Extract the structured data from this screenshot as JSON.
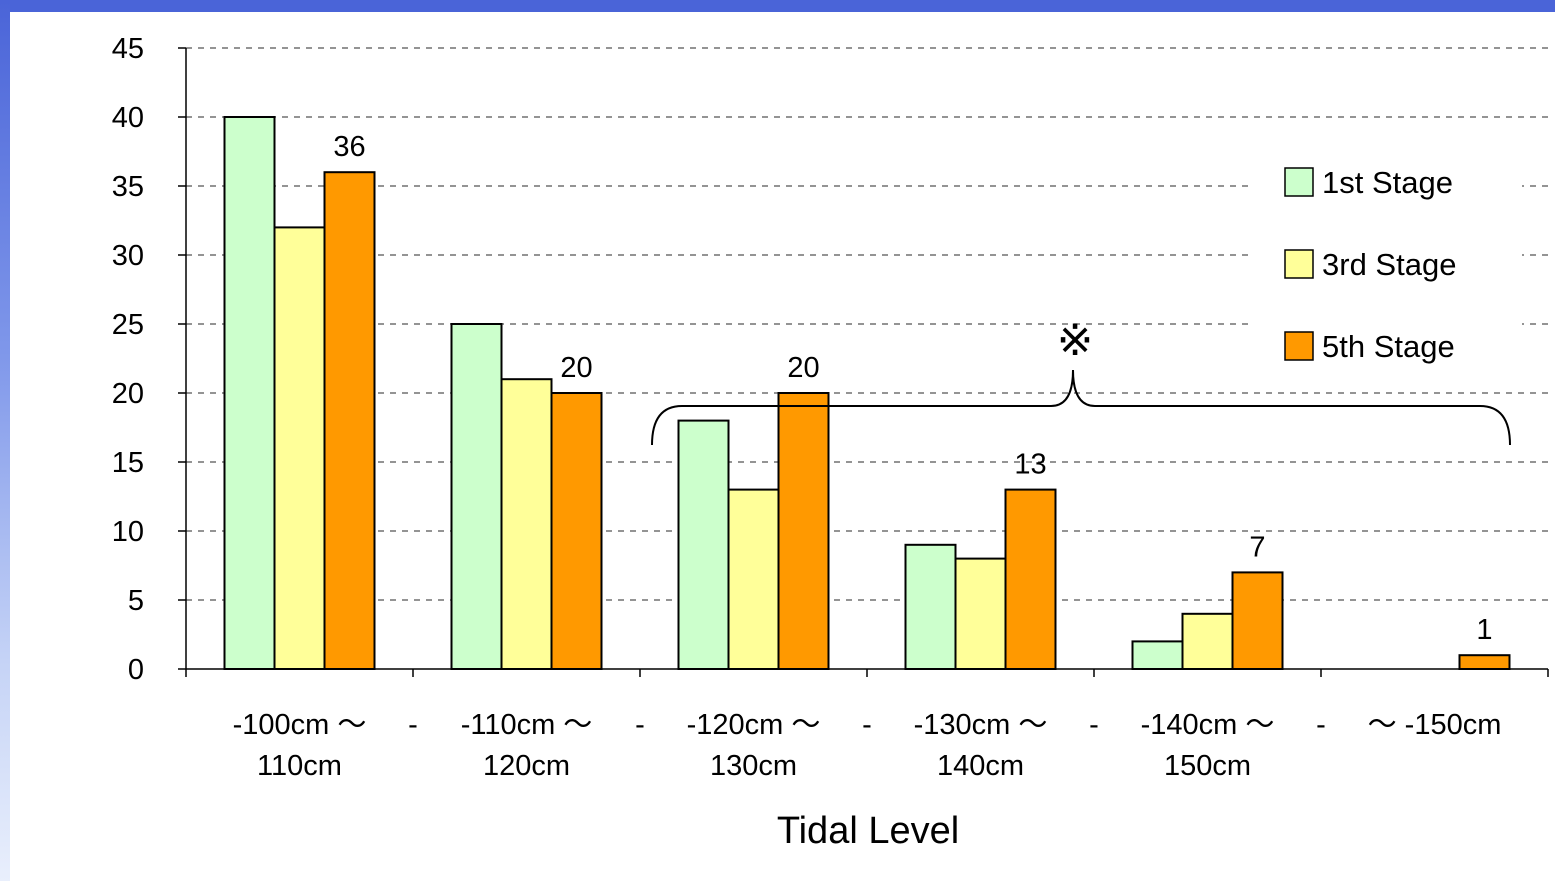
{
  "chart_data": {
    "type": "bar",
    "title": "",
    "xlabel": "Tidal Level",
    "ylabel": "",
    "ylim": [
      0,
      45
    ],
    "yticks": [
      0,
      5,
      10,
      15,
      20,
      25,
      30,
      35,
      40,
      45
    ],
    "grid": true,
    "legend_position": "right",
    "categories": [
      [
        "-100cm ～",
        "110cm"
      ],
      [
        "-110cm ～",
        "120cm"
      ],
      [
        "-120cm ～",
        "130cm"
      ],
      [
        "-130cm ～",
        "140cm"
      ],
      [
        "-140cm ～",
        "150cm"
      ],
      [
        "～ -150cm"
      ]
    ],
    "category_separator": "-",
    "series": [
      {
        "name": "1st Stage",
        "color": "#ccffcc",
        "values": [
          40,
          25,
          18,
          9,
          2,
          0
        ]
      },
      {
        "name": "3rd Stage",
        "color": "#ffff99",
        "values": [
          32,
          21,
          13,
          8,
          4,
          0
        ]
      },
      {
        "name": "5th Stage",
        "color": "#ff9900",
        "values": [
          36,
          20,
          20,
          13,
          7,
          1
        ]
      }
    ],
    "data_labels_series": "5th Stage",
    "annotation": {
      "symbol": "※",
      "spans_categories": [
        2,
        5
      ]
    }
  }
}
